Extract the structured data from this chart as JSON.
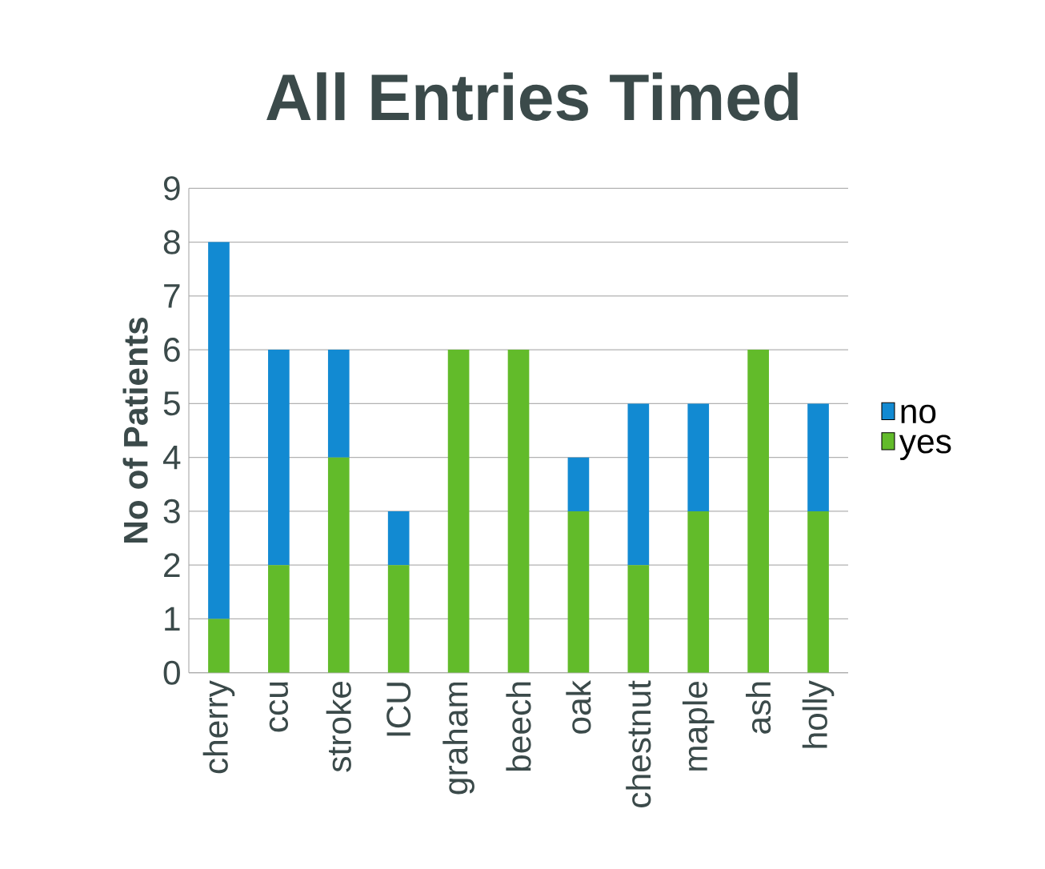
{
  "chart_data": {
    "type": "bar",
    "stacked": true,
    "title": "All Entries Timed",
    "ylabel": "No of Patients",
    "categories": [
      "cherry",
      "ccu",
      "stroke",
      "ICU",
      "graham",
      "beech",
      "oak",
      "chestnut",
      "maple",
      "ash",
      "holly"
    ],
    "series": [
      {
        "name": "yes",
        "color": "#62bb2a",
        "values": [
          1,
          2,
          4,
          2,
          6,
          6,
          3,
          2,
          3,
          6,
          3
        ]
      },
      {
        "name": "no",
        "color": "#128ad2",
        "values": [
          7,
          4,
          2,
          1,
          0,
          0,
          1,
          3,
          2,
          0,
          2
        ]
      }
    ],
    "ylim": [
      0,
      9
    ],
    "yticks": [
      0,
      1,
      2,
      3,
      4,
      5,
      6,
      7,
      8,
      9
    ],
    "grid": "y",
    "legend": "right"
  }
}
